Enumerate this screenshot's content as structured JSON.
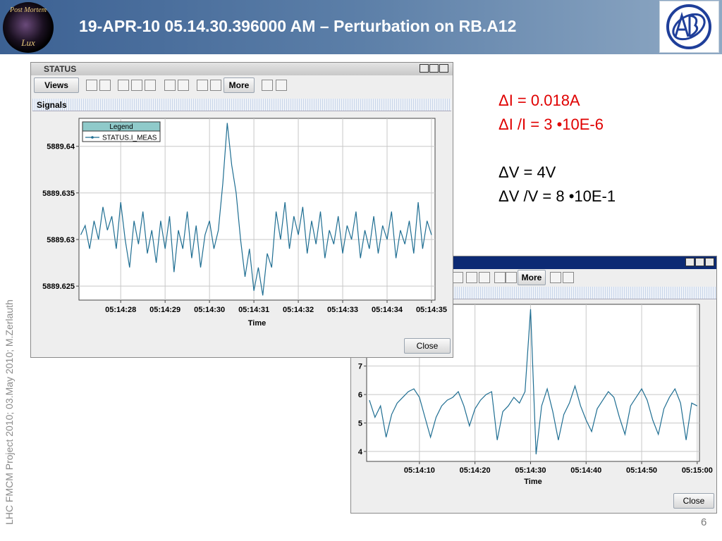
{
  "header": {
    "title": "19-APR-10 05.14.30.396000 AM – Perturbation on RB.A12",
    "logo": [
      "Post Mortem",
      "Lux"
    ]
  },
  "sidebar": "LHC FMCM Project 2010; 03.May 2010; M.Zerlauth",
  "page_number": "6",
  "notes": [
    {
      "text": "ΔI = 0.018A",
      "color": "#e00000"
    },
    {
      "text": "ΔI /I = 3 •10E-6",
      "color": "#e00000"
    },
    {
      "text": "ΔV = 4V",
      "color": "#000000"
    },
    {
      "text": "ΔV /V = 8 •10E-1",
      "color": "#000000"
    }
  ],
  "windows": [
    {
      "title": "STATUS",
      "views": "Views",
      "more": "More",
      "panel": "Signals",
      "close": "Close"
    },
    {
      "more": "More",
      "close": "Close"
    }
  ],
  "chart_data": [
    {
      "type": "line",
      "x_label": "Time",
      "legend_title": "Legend",
      "legend": "top-left",
      "grid": true,
      "x": [
        27.1,
        27.2,
        27.3,
        27.4,
        27.5,
        27.6,
        27.7,
        27.8,
        27.9,
        28.0,
        28.1,
        28.2,
        28.3,
        28.4,
        28.5,
        28.6,
        28.7,
        28.8,
        28.9,
        29.0,
        29.1,
        29.2,
        29.3,
        29.4,
        29.5,
        29.6,
        29.7,
        29.8,
        29.9,
        30.0,
        30.1,
        30.2,
        30.3,
        30.4,
        30.5,
        30.6,
        30.7,
        30.8,
        30.9,
        31.0,
        31.1,
        31.2,
        31.3,
        31.4,
        31.5,
        31.6,
        31.7,
        31.8,
        31.9,
        32.0,
        32.1,
        32.2,
        32.3,
        32.4,
        32.5,
        32.6,
        32.7,
        32.8,
        32.9,
        33.0,
        33.1,
        33.2,
        33.3,
        33.4,
        33.5,
        33.6,
        33.7,
        33.8,
        33.9,
        34.0,
        34.1,
        34.2,
        34.3,
        34.4,
        34.5,
        34.6,
        34.7,
        34.8,
        34.9,
        35.0
      ],
      "xlim": [
        27.06,
        35.08
      ],
      "xticks": [
        {
          "value": 28,
          "label": "05:14:28"
        },
        {
          "value": 29,
          "label": "05:14:29"
        },
        {
          "value": 30,
          "label": "05:14:30"
        },
        {
          "value": 31,
          "label": "05:14:31"
        },
        {
          "value": 32,
          "label": "05:14:32"
        },
        {
          "value": 33,
          "label": "05:14:33"
        },
        {
          "value": 34,
          "label": "05:14:34"
        },
        {
          "value": 35,
          "label": "05:14:35"
        }
      ],
      "ylim": [
        5889.6235,
        5889.643
      ],
      "yticks": [
        5889.625,
        5889.63,
        5889.635,
        5889.64
      ],
      "series": [
        {
          "name": "STATUS.I_MEAS",
          "color": "#1f6e92",
          "values": [
            5889.6305,
            5889.6315,
            5889.629,
            5889.632,
            5889.63,
            5889.6335,
            5889.631,
            5889.6325,
            5889.629,
            5889.634,
            5889.63,
            5889.627,
            5889.632,
            5889.6295,
            5889.633,
            5889.6285,
            5889.631,
            5889.6275,
            5889.632,
            5889.629,
            5889.6325,
            5889.6265,
            5889.631,
            5889.629,
            5889.633,
            5889.628,
            5889.6315,
            5889.627,
            5889.6305,
            5889.632,
            5889.629,
            5889.631,
            5889.636,
            5889.6425,
            5889.638,
            5889.635,
            5889.63,
            5889.626,
            5889.629,
            5889.6245,
            5889.627,
            5889.624,
            5889.6285,
            5889.627,
            5889.633,
            5889.63,
            5889.634,
            5889.629,
            5889.6325,
            5889.6305,
            5889.6335,
            5889.6285,
            5889.632,
            5889.6295,
            5889.633,
            5889.628,
            5889.631,
            5889.6295,
            5889.6325,
            5889.6285,
            5889.6315,
            5889.63,
            5889.633,
            5889.628,
            5889.631,
            5889.629,
            5889.6325,
            5889.6285,
            5889.6315,
            5889.63,
            5889.633,
            5889.628,
            5889.631,
            5889.6295,
            5889.632,
            5889.6285,
            5889.634,
            5889.629,
            5889.632,
            5889.6305
          ]
        }
      ]
    },
    {
      "type": "line",
      "x_label": "Time",
      "grid": true,
      "x": [
        1,
        2,
        3,
        4,
        5,
        6,
        7,
        8,
        9,
        10,
        11,
        12,
        13,
        14,
        15,
        16,
        17,
        18,
        19,
        20,
        21,
        22,
        23,
        24,
        25,
        26,
        27,
        28,
        29,
        30,
        31,
        32,
        33,
        34,
        35,
        36,
        37,
        38,
        39,
        40,
        41,
        42,
        43,
        44,
        45,
        46,
        47,
        48,
        49,
        50,
        51,
        52,
        53,
        54,
        55,
        56,
        57,
        58,
        59,
        60
      ],
      "xlim": [
        0.5,
        60.4
      ],
      "xticks": [
        {
          "value": 10,
          "label": "05:14:10"
        },
        {
          "value": 20,
          "label": "05:14:20"
        },
        {
          "value": 30,
          "label": "05:14:30"
        },
        {
          "value": 40,
          "label": "05:14:40"
        },
        {
          "value": 50,
          "label": "05:14:50"
        },
        {
          "value": 60,
          "label": "05:15:00"
        }
      ],
      "ylim": [
        3.65,
        9.17
      ],
      "yticks": [
        4,
        5,
        6,
        7
      ],
      "series": [
        {
          "color": "#1f6e92",
          "values": [
            5.8,
            5.2,
            5.6,
            4.5,
            5.3,
            5.7,
            5.9,
            6.1,
            6.2,
            5.9,
            5.2,
            4.5,
            5.2,
            5.6,
            5.8,
            5.9,
            6.1,
            5.6,
            4.9,
            5.5,
            5.8,
            6.0,
            6.1,
            4.4,
            5.4,
            5.6,
            5.9,
            5.7,
            6.1,
            9.0,
            3.9,
            5.6,
            6.2,
            5.4,
            4.4,
            5.3,
            5.7,
            6.3,
            5.6,
            5.1,
            4.7,
            5.5,
            5.8,
            6.1,
            5.9,
            5.2,
            4.6,
            5.6,
            5.9,
            6.2,
            5.8,
            5.1,
            4.6,
            5.5,
            5.9,
            6.2,
            5.7,
            4.4,
            5.7,
            5.6
          ]
        }
      ]
    }
  ]
}
